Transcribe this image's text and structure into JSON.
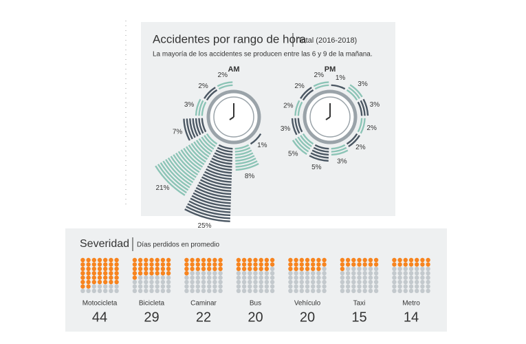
{
  "chart_data": [
    {
      "type": "radial-clock",
      "title": "Accidentes por rango de hora",
      "subtitle": "Total (2016-2018)",
      "note": "La mayoría de los accidentes se producen entre las 6 y 9 de la mañana.",
      "colors": [
        "#4b5763",
        "#8cc4b6"
      ],
      "clocks": [
        {
          "label": "AM",
          "values": [
            null,
            null,
            null,
            null,
            1,
            8,
            25,
            21,
            7,
            3,
            2,
            2
          ],
          "value_labels": [
            null,
            null,
            null,
            null,
            "1%",
            "8%",
            "25%",
            "21%",
            "7%",
            "3%",
            "2%",
            "2%"
          ]
        },
        {
          "label": "PM",
          "values": [
            1,
            3,
            3,
            2,
            2,
            3,
            5,
            5,
            3,
            2,
            2,
            2
          ],
          "value_labels": [
            "1%",
            "3%",
            "3%",
            "2%",
            "2%",
            "3%",
            "5%",
            "5%",
            "3%",
            "2%",
            "2%",
            "2%"
          ]
        }
      ]
    },
    {
      "type": "waffle",
      "title": "Severidad",
      "subtitle": "Días perdidos en promedio",
      "color": "#f7841f",
      "rest_color": "#c3c9cd",
      "categories": [
        "Motocicleta",
        "Bicicleta",
        "Caminar",
        "Bus",
        "Vehículo",
        "Taxi",
        "Metro"
      ],
      "values": [
        44,
        29,
        22,
        20,
        20,
        15,
        14
      ]
    }
  ]
}
